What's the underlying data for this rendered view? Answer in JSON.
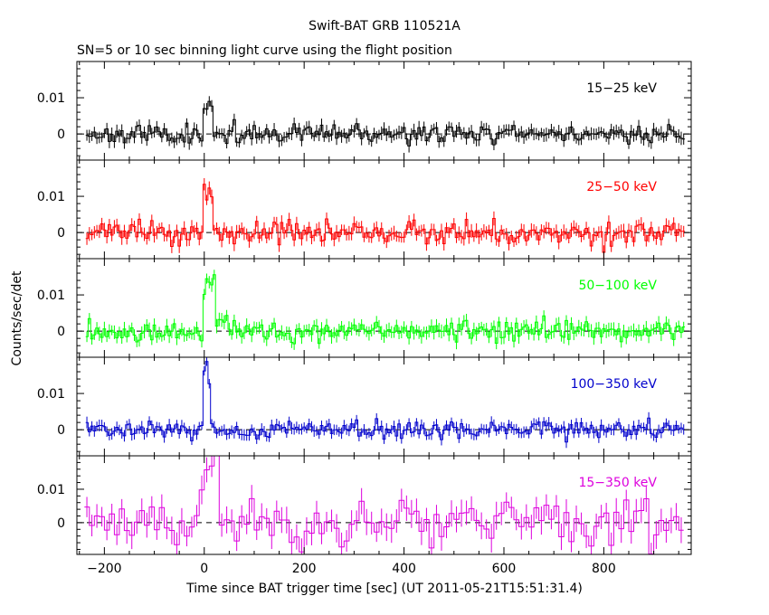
{
  "chart_data": {
    "type": "line",
    "title": "Swift-BAT GRB 110521A",
    "subtitle": "SN=5 or 10 sec binning light curve using the flight position",
    "xlabel": "Time since BAT trigger time [sec] (UT 2011-05-21T15:51:31.4)",
    "ylabel": "Counts/sec/det",
    "xlim": [
      -255,
      975
    ],
    "x_ticks": [
      -200,
      0,
      200,
      400,
      600,
      800
    ],
    "x_tick_labels": [
      "−200",
      "0",
      "200",
      "400",
      "600",
      "800"
    ],
    "panels": [
      {
        "name": "15-25 keV",
        "label": "15−25 keV",
        "color": "#000000",
        "ylim": [
          -0.0072,
          0.02
        ],
        "y_ticks": [
          0,
          0.01
        ],
        "y_tick_labels": [
          "0",
          "0.01"
        ],
        "x_start": -235,
        "bin": 5,
        "seed": 11,
        "noise": 0.0013,
        "err": 0.0016,
        "features": [
          {
            "type": "burst",
            "at": 8,
            "peak": 0.01,
            "width": 9
          }
        ]
      },
      {
        "name": "25-50 keV",
        "label": "25−50 keV",
        "color": "#ff0000",
        "ylim": [
          -0.0072,
          0.02
        ],
        "y_ticks": [
          0,
          0.01
        ],
        "y_tick_labels": [
          "0",
          "0.01"
        ],
        "x_start": -235,
        "bin": 5,
        "seed": 23,
        "noise": 0.0015,
        "err": 0.0017,
        "features": [
          {
            "type": "burst",
            "at": 8,
            "peak": 0.016,
            "width": 10
          }
        ]
      },
      {
        "name": "50-100 keV",
        "label": "50−100 keV",
        "color": "#00ff00",
        "ylim": [
          -0.0072,
          0.02
        ],
        "y_ticks": [
          0,
          0.01
        ],
        "y_tick_labels": [
          "0",
          "0.01"
        ],
        "x_start": -235,
        "bin": 5,
        "seed": 37,
        "noise": 0.0014,
        "err": 0.0017,
        "features": [
          {
            "type": "burst",
            "at": 8,
            "peak": 0.016,
            "width": 12
          },
          {
            "type": "tail",
            "from": 20,
            "to": 80,
            "amp": 0.0025
          }
        ]
      },
      {
        "name": "100-350 keV",
        "label": "100−350 keV",
        "color": "#0000cc",
        "ylim": [
          -0.0072,
          0.02
        ],
        "y_ticks": [
          0,
          0.01
        ],
        "y_tick_labels": [
          "0",
          "0.01"
        ],
        "x_start": -235,
        "bin": 5,
        "seed": 41,
        "noise": 0.0012,
        "err": 0.0014,
        "features": [
          {
            "type": "burst",
            "at": 6,
            "peak": 0.019,
            "width": 6
          },
          {
            "type": "tail",
            "from": 15,
            "to": 60,
            "amp": 0.0012
          }
        ]
      },
      {
        "name": "15-350 keV",
        "label": "15−350 keV",
        "color": "#dd00dd",
        "ylim": [
          -0.0095,
          0.02
        ],
        "y_ticks": [
          0,
          0.01
        ],
        "y_tick_labels": [
          "0",
          "0.01"
        ],
        "x_start": -235,
        "bin": 10,
        "seed": 53,
        "noise": 0.0033,
        "err": 0.0036,
        "features": [
          {
            "type": "burst",
            "at": 8,
            "peak": 0.02,
            "width": 18
          },
          {
            "type": "tail",
            "from": 20,
            "to": 50,
            "amp": 0.004
          }
        ]
      }
    ]
  }
}
